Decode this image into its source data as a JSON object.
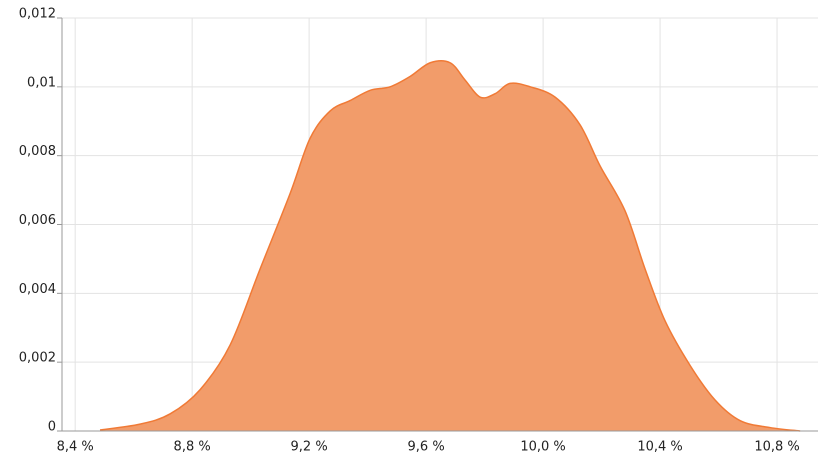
{
  "chart_data": {
    "type": "area",
    "x": [
      8.485,
      8.622,
      8.725,
      8.827,
      8.93,
      9.032,
      9.135,
      9.203,
      9.272,
      9.34,
      9.409,
      9.477,
      9.545,
      9.614,
      9.682,
      9.733,
      9.785,
      9.836,
      9.887,
      9.956,
      10.041,
      10.126,
      10.195,
      10.28,
      10.349,
      10.417,
      10.503,
      10.588,
      10.674,
      10.776,
      10.879
    ],
    "values": [
      3e-05,
      0.0002,
      0.0005,
      0.0012,
      0.0025,
      0.0047,
      0.0069,
      0.0085,
      0.0093,
      0.0096,
      0.0099,
      0.01,
      0.0103,
      0.0107,
      0.0107,
      0.0102,
      0.0097,
      0.0098,
      0.0101,
      0.01,
      0.0097,
      0.0089,
      0.0077,
      0.0064,
      0.0047,
      0.0032,
      0.0019,
      0.0009,
      0.0003,
      0.0001,
      0
    ],
    "color": "#f29c6a",
    "line_color": "#f07a36",
    "xlim": [
      8.355,
      10.94
    ],
    "xticks": [
      {
        "value": 8.4,
        "label": "8,4 %"
      },
      {
        "value": 8.8,
        "label": "8,8 %"
      },
      {
        "value": 9.2,
        "label": "9,2 %"
      },
      {
        "value": 9.6,
        "label": "9,6 %"
      },
      {
        "value": 10.0,
        "label": "10,0 %"
      },
      {
        "value": 10.4,
        "label": "10,4 %"
      },
      {
        "value": 10.8,
        "label": "10,8 %"
      }
    ],
    "ylim": [
      0,
      0.012
    ],
    "yticks": [
      0,
      {
        "value": 0.002,
        "label": "0,002"
      },
      {
        "value": 0.004,
        "label": "0,004"
      },
      {
        "value": 0.006,
        "label": "0,006"
      },
      {
        "value": 0.008,
        "label": "0,008"
      },
      {
        "value": 0.01,
        "label": "0,01"
      },
      {
        "value": 0.012,
        "label": "0,012"
      }
    ],
    "grid": true
  }
}
